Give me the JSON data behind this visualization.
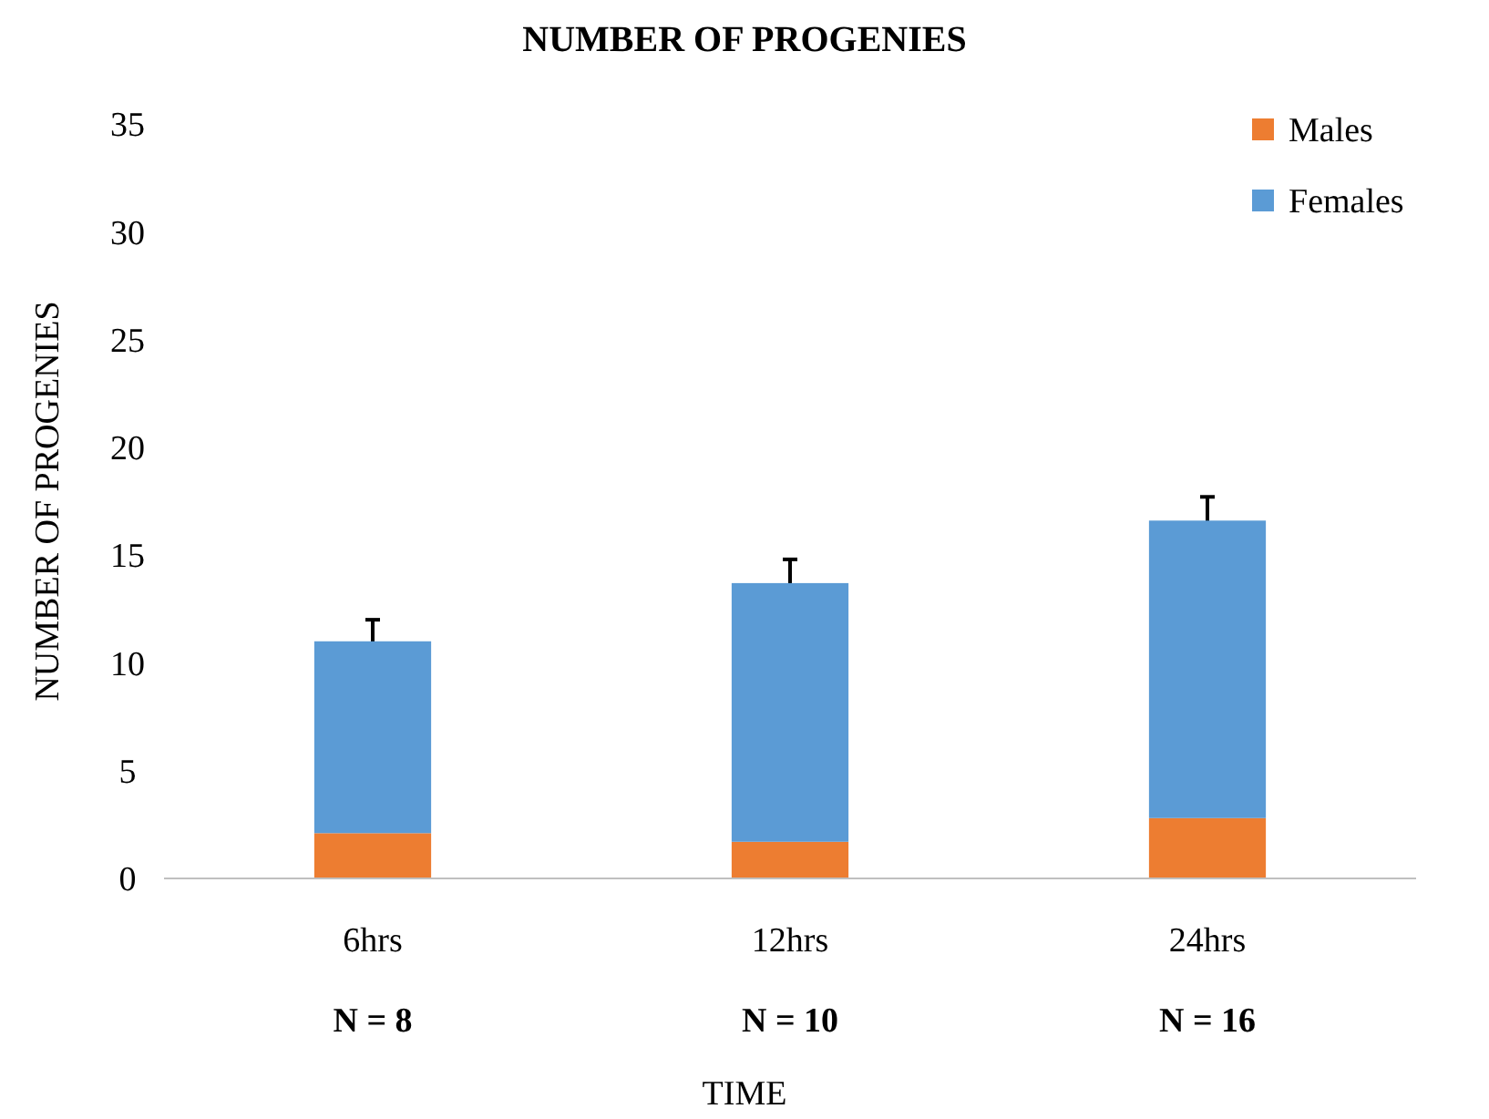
{
  "chart_data": {
    "type": "bar",
    "title": "NUMBER OF PROGENIES",
    "xlabel": "TIME",
    "ylabel": "NUMBER OF PROGENIES",
    "categories": [
      "6hrs",
      "12hrs",
      "24hrs"
    ],
    "stacked": true,
    "series": [
      {
        "name": "Males",
        "color": "#ed7d31",
        "values": [
          2.1,
          1.7,
          2.8
        ]
      },
      {
        "name": "Females",
        "color": "#5b9bd5",
        "values": [
          8.9,
          12.0,
          13.8
        ],
        "errors": [
          1.0,
          1.1,
          1.1
        ]
      }
    ],
    "ylim": [
      0,
      35
    ],
    "yticks": [
      0,
      5,
      10,
      15,
      20,
      25,
      30,
      35
    ],
    "grid": false,
    "legend": "top right",
    "annotations": [
      "N = 8",
      "N = 10",
      "N = 16"
    ]
  }
}
